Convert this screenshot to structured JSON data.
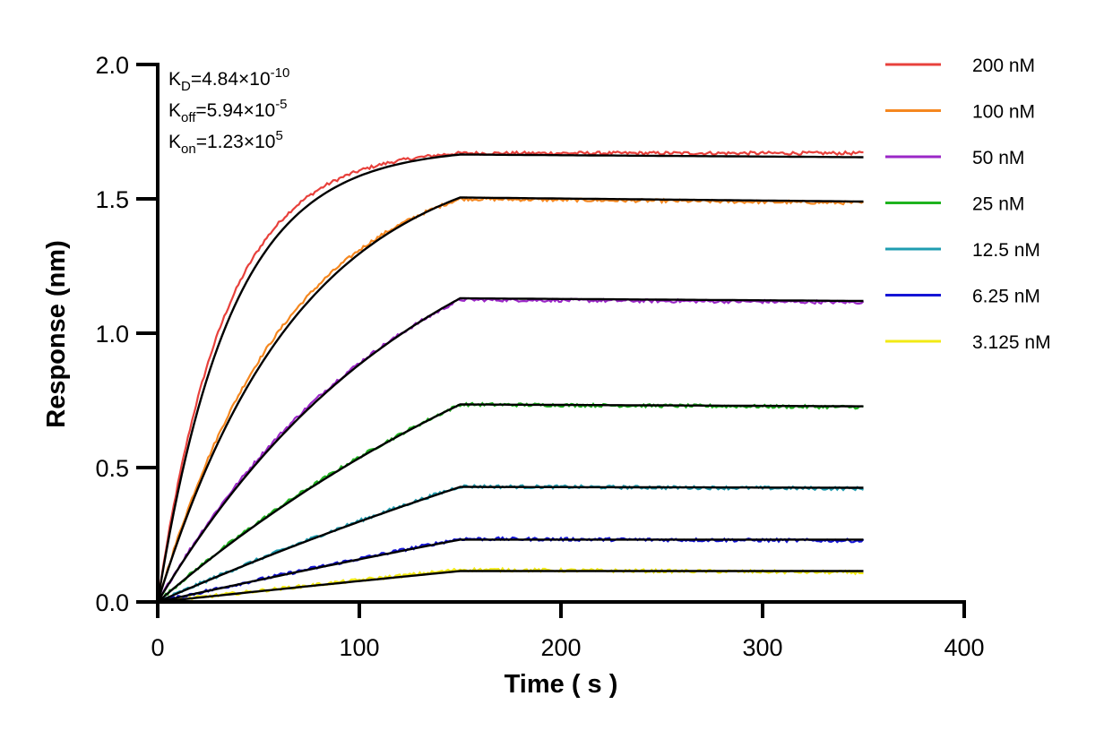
{
  "chart_data": {
    "type": "line",
    "xlabel": "Time ( s )",
    "ylabel": "Response (nm)",
    "xlim": [
      0,
      400
    ],
    "ylim": [
      0,
      2.0
    ],
    "x_ticks": [
      "0",
      "100",
      "200",
      "300",
      "400"
    ],
    "y_ticks": [
      "0.0",
      "0.5",
      "1.0",
      "1.5",
      "2.0"
    ],
    "grid": false,
    "legend_position": "right",
    "association_end_s": 150,
    "end_s": 350,
    "annotations": [
      {
        "base": "K",
        "sub": "D",
        "mid": "=4.84×10",
        "sup": "-10"
      },
      {
        "base": "K",
        "sub": "off",
        "mid": "=5.94×10",
        "sup": "-5"
      },
      {
        "base": "K",
        "sub": "on",
        "mid": "=1.23×10",
        "sup": "5"
      }
    ],
    "fit_color": "#000000",
    "series": [
      {
        "name": "200 nM",
        "color": "#e8413c",
        "plateau": 1.67,
        "kobs": 0.03,
        "end": 1.67,
        "fit_plateau": 1.665,
        "fit_end": 1.655
      },
      {
        "name": "100 nM",
        "color": "#f5871f",
        "plateau": 1.5,
        "kobs": 0.0155,
        "end": 1.485,
        "fit_plateau": 1.505,
        "fit_end": 1.49
      },
      {
        "name": "50 nM",
        "color": "#9b27c7",
        "plateau": 1.125,
        "kobs": 0.0082,
        "end": 1.115,
        "fit_plateau": 1.13,
        "fit_end": 1.12
      },
      {
        "name": "25 nM",
        "color": "#1eb31e",
        "plateau": 0.735,
        "kobs": 0.0042,
        "end": 0.725,
        "fit_plateau": 0.735,
        "fit_end": 0.728
      },
      {
        "name": "12.5 nM",
        "color": "#1f9db0",
        "plateau": 0.43,
        "kobs": 0.0021,
        "end": 0.422,
        "fit_plateau": 0.428,
        "fit_end": 0.425
      },
      {
        "name": "6.25 nM",
        "color": "#1515d6",
        "plateau": 0.235,
        "kobs": 0.0011,
        "end": 0.228,
        "fit_plateau": 0.232,
        "fit_end": 0.232
      },
      {
        "name": "3.125 nM",
        "color": "#f2ea14",
        "plateau": 0.12,
        "kobs": 0.0006,
        "end": 0.11,
        "fit_plateau": 0.115,
        "fit_end": 0.115
      }
    ]
  }
}
